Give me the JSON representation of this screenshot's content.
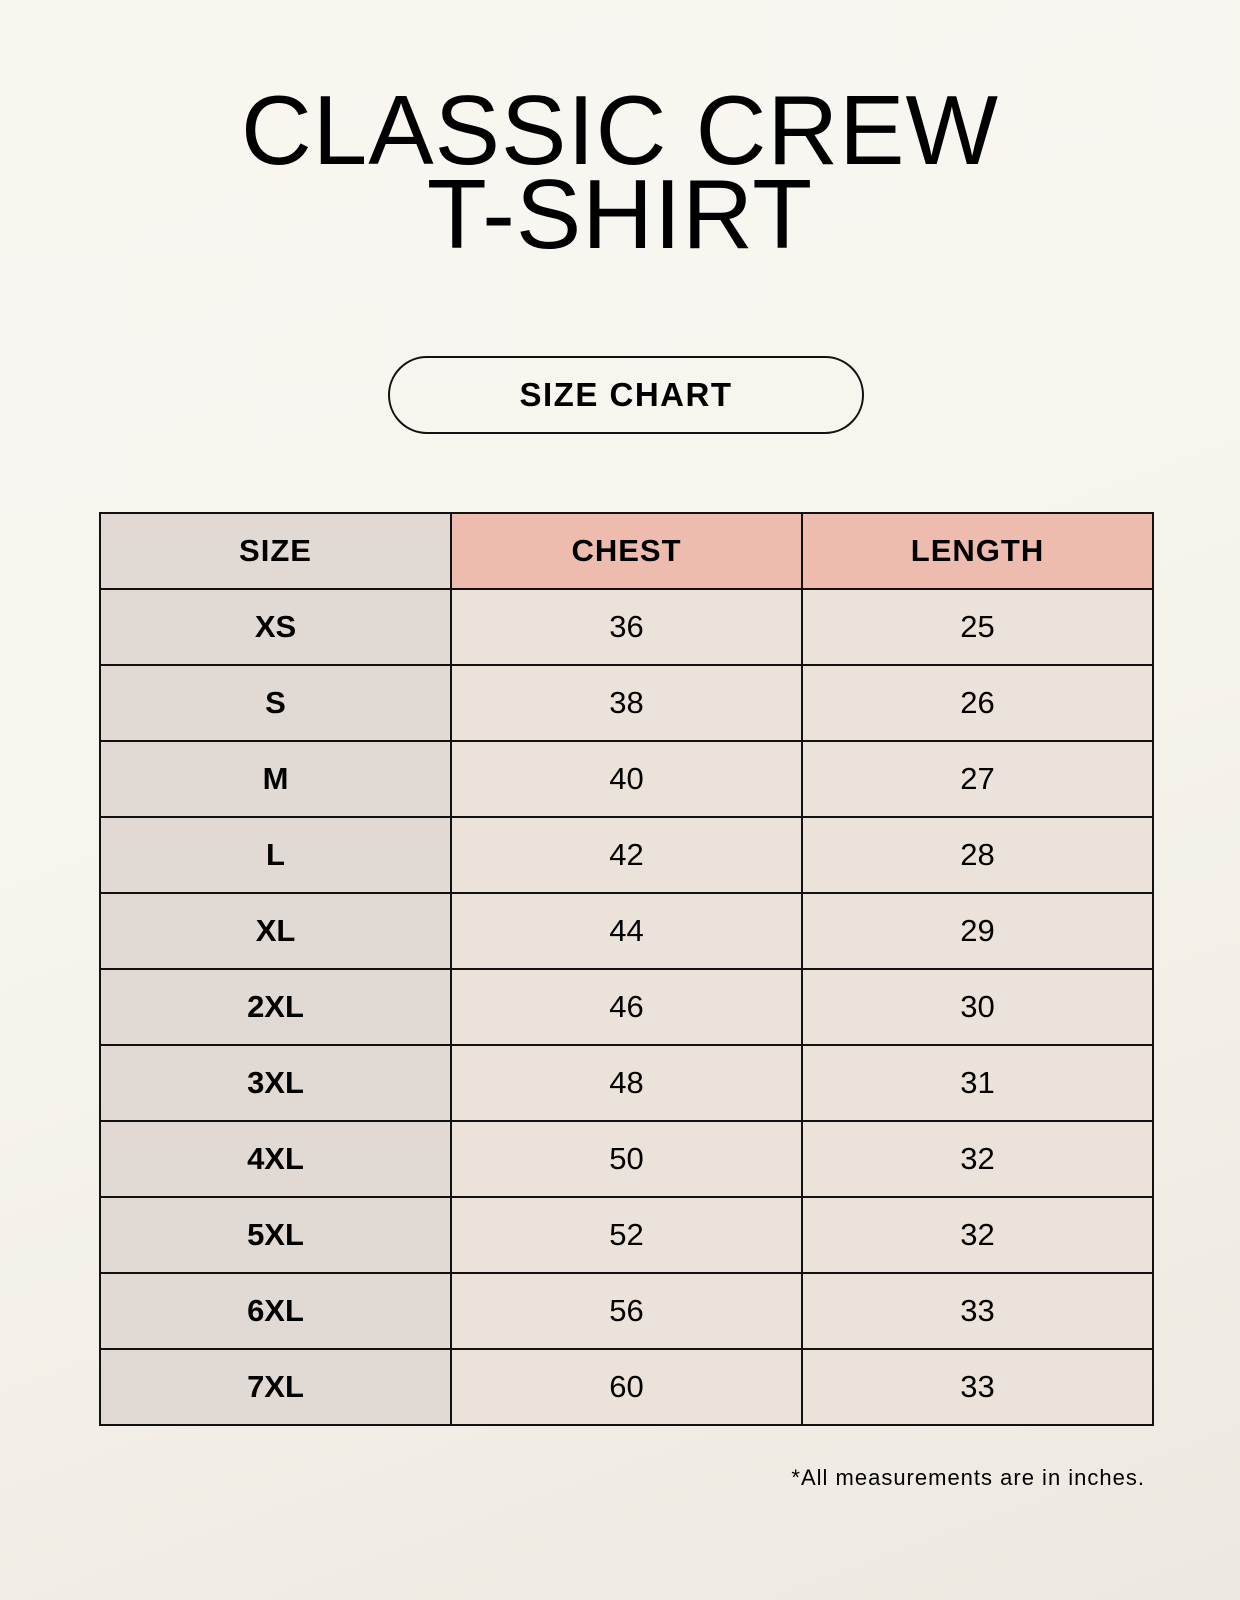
{
  "title": {
    "line1": "CLASSIC CREW",
    "line2": "T-SHIRT"
  },
  "badge": "SIZE CHART",
  "table": {
    "headers": [
      "SIZE",
      "CHEST",
      "LENGTH"
    ],
    "rows": [
      [
        "XS",
        "36",
        "25"
      ],
      [
        "S",
        "38",
        "26"
      ],
      [
        "M",
        "40",
        "27"
      ],
      [
        "L",
        "42",
        "28"
      ],
      [
        "XL",
        "44",
        "29"
      ],
      [
        "2XL",
        "46",
        "30"
      ],
      [
        "3XL",
        "48",
        "31"
      ],
      [
        "4XL",
        "50",
        "32"
      ],
      [
        "5XL",
        "52",
        "32"
      ],
      [
        "6XL",
        "56",
        "33"
      ],
      [
        "7XL",
        "60",
        "33"
      ]
    ]
  },
  "note": "*All measurements are in inches.",
  "colors": {
    "size_column": "#e1d9d3",
    "header_accent": "#eebcaf",
    "value_cells": "#ebe3da",
    "background": "#f9f6f0"
  }
}
